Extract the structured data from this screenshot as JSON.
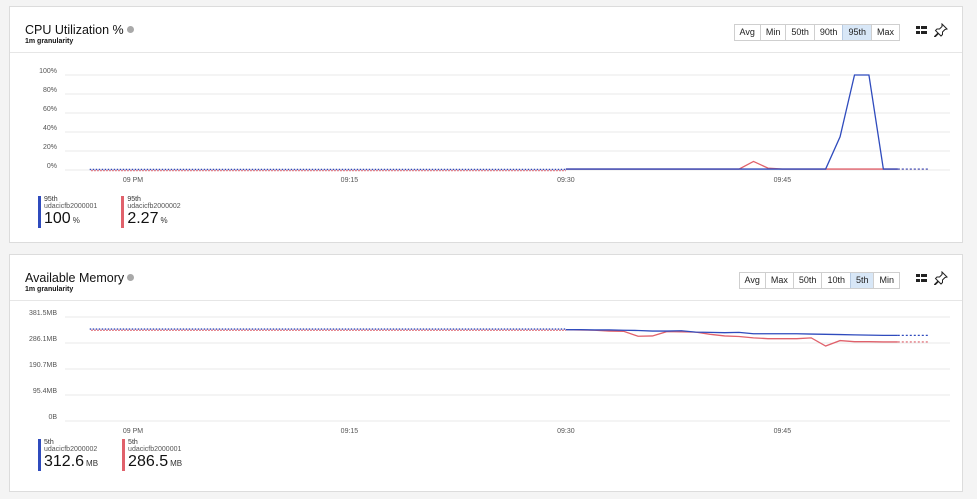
{
  "panels": [
    {
      "title": "CPU Utilization %",
      "subtitle": "1m granularity",
      "toolbar": [
        "Avg",
        "Min",
        "50th",
        "90th",
        "95th",
        "Max"
      ],
      "active": "95th",
      "legend": [
        {
          "stat": "95th",
          "name": "udacicfb2000001",
          "value": "100",
          "unit": "%",
          "color": "#2f4bbd"
        },
        {
          "stat": "95th",
          "name": "udacicfb2000002",
          "value": "2.27",
          "unit": "%",
          "color": "#e0616b"
        }
      ]
    },
    {
      "title": "Available Memory",
      "subtitle": "1m granularity",
      "toolbar": [
        "Avg",
        "Max",
        "50th",
        "10th",
        "5th",
        "Min"
      ],
      "active": "5th",
      "legend": [
        {
          "stat": "5th",
          "name": "udacicfb2000002",
          "value": "312.6",
          "unit": "MB",
          "color": "#2f4bbd"
        },
        {
          "stat": "5th",
          "name": "udacicfb2000001",
          "value": "286.5",
          "unit": "MB",
          "color": "#e0616b"
        }
      ]
    }
  ],
  "chart_data": [
    {
      "type": "line",
      "title": "CPU Utilization %",
      "xticks": [
        "09 PM",
        "09:15",
        "09:30",
        "09:45"
      ],
      "yticks": [
        "100%",
        "80%",
        "60%",
        "40%",
        "20%",
        "0%"
      ],
      "ylim": [
        0,
        100
      ],
      "x_minutes": [
        30,
        31,
        32,
        33,
        34,
        35,
        36,
        37,
        38,
        39,
        40,
        41,
        42,
        43,
        44,
        45,
        46,
        47,
        48,
        49,
        50,
        51,
        52,
        53
      ],
      "series": [
        {
          "name": "udacicfb2000001",
          "color": "#2f4bbd",
          "values": [
            1,
            1,
            1,
            1,
            1,
            1,
            1,
            1,
            1,
            1,
            1,
            1,
            1,
            1,
            1,
            1,
            1,
            1,
            1,
            35,
            100,
            100,
            1,
            1
          ]
        },
        {
          "name": "udacicfb2000002",
          "color": "#e0616b",
          "values": [
            1,
            1,
            1,
            1,
            1,
            1,
            1,
            1,
            1,
            1,
            1,
            1,
            1,
            9,
            2,
            1,
            1,
            1,
            1,
            1,
            1,
            1,
            1,
            1
          ]
        }
      ],
      "gap_value": 0,
      "gap_x_range": [
        -3,
        30
      ]
    },
    {
      "type": "line",
      "title": "Available Memory",
      "xticks": [
        "09 PM",
        "09:15",
        "09:30",
        "09:45"
      ],
      "yticks": [
        "381.5MB",
        "286.1MB",
        "190.7MB",
        "95.4MB",
        "0B"
      ],
      "ylim_mb": [
        0,
        381.5
      ],
      "x_minutes": [
        30,
        31,
        32,
        33,
        34,
        35,
        36,
        37,
        38,
        39,
        40,
        41,
        42,
        43,
        44,
        45,
        46,
        47,
        48,
        49,
        50,
        51,
        52,
        53
      ],
      "series": [
        {
          "name": "udacicfb2000002",
          "color": "#2f4bbd",
          "values": [
            335,
            335,
            334,
            334,
            333,
            332,
            330,
            330,
            331,
            326,
            325,
            324,
            325,
            320,
            320,
            320,
            320,
            319,
            318,
            317,
            316,
            315,
            314,
            314
          ]
        },
        {
          "name": "udacicfb2000001",
          "color": "#e0616b",
          "values": [
            335,
            334,
            333,
            330,
            329,
            311,
            312,
            328,
            327,
            326,
            318,
            312,
            310,
            305,
            302,
            302,
            302,
            305,
            275,
            295,
            291,
            291,
            290,
            290
          ]
        }
      ],
      "gap_value": 335,
      "gap_x_range": [
        -3,
        30
      ]
    }
  ]
}
